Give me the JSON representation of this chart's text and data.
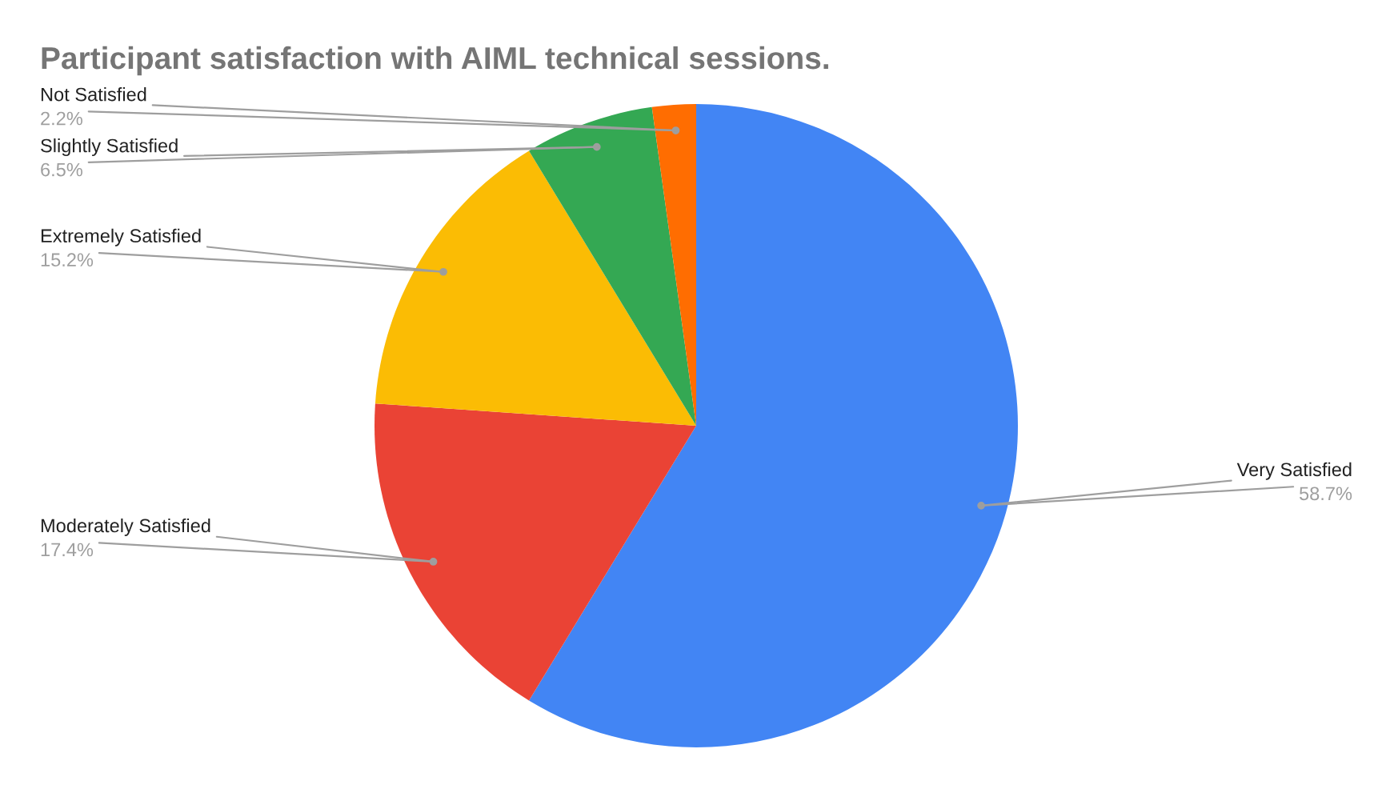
{
  "chart_data": {
    "type": "pie",
    "title": "Participant satisfaction with AIML technical sessions.",
    "categories": [
      "Very Satisfied",
      "Moderately Satisfied",
      "Extremely Satisfied",
      "Slightly Satisfied",
      "Not Satisfied"
    ],
    "values": [
      58.7,
      17.4,
      15.2,
      6.5,
      2.2
    ],
    "value_labels": [
      "58.7%",
      "17.4%",
      "15.2%",
      "6.5%",
      "2.2%"
    ],
    "colors": [
      "#4285f4",
      "#ea4335",
      "#fbbc04",
      "#34a853",
      "#ff6d01"
    ],
    "legend": false
  }
}
